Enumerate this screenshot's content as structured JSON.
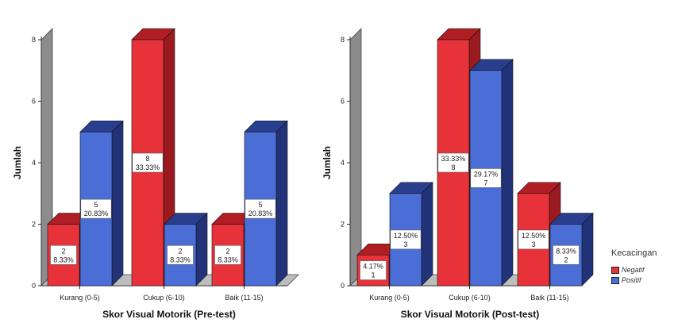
{
  "chart_data": [
    {
      "type": "bar",
      "xlabel": "Skor Visual Motorik (Pre-test)",
      "ylabel": "Jumlah",
      "ylim": [
        0,
        8
      ],
      "yticks": [
        "0",
        "2",
        "4",
        "6",
        "8"
      ],
      "categories": [
        "Kurang (0-5)",
        "Cukup (6-10)",
        "Baik (11-15)"
      ],
      "series": [
        {
          "name": "Negatif",
          "values": [
            2,
            8,
            2
          ],
          "labels": [
            [
              "2",
              "8.33%"
            ],
            [
              "8",
              "33.33%"
            ],
            [
              "2",
              "8.33%"
            ]
          ]
        },
        {
          "name": "Positif",
          "values": [
            5,
            2,
            5
          ],
          "labels": [
            [
              "5",
              "20.83%"
            ],
            [
              "2",
              "8.33%"
            ],
            [
              "5",
              "20.83%"
            ]
          ]
        }
      ]
    },
    {
      "type": "bar",
      "xlabel": "Skor Visual Motorik (Post-test)",
      "ylabel": "Jumlah",
      "ylim": [
        0,
        8
      ],
      "yticks": [
        "0",
        "2",
        "4",
        "6",
        "8"
      ],
      "categories": [
        "Kurang (0-5)",
        "Cukup (6-10)",
        "Baik (11-15)"
      ],
      "series": [
        {
          "name": "Negatif",
          "values": [
            1,
            8,
            3
          ],
          "labels": [
            [
              "4.17%",
              "1"
            ],
            [
              "33.33%",
              "8"
            ],
            [
              "12.50%",
              "3"
            ]
          ]
        },
        {
          "name": "Positif",
          "values": [
            3,
            7,
            2
          ],
          "labels": [
            [
              "12.50%",
              "3"
            ],
            [
              "29.17%",
              "7"
            ],
            [
              "8.33%",
              "2"
            ]
          ]
        }
      ]
    }
  ],
  "legend": {
    "title": "Kecacingan",
    "items": [
      {
        "label": "Negatif",
        "color": "#e8323a"
      },
      {
        "label": "Positif",
        "color": "#4a6ed6"
      }
    ]
  },
  "colors": {
    "negatif_front": "#e8323a",
    "negatif_top": "#b01e24",
    "negatif_side": "#9a1a20",
    "positif_front": "#4a6ed6",
    "positif_top": "#2a3e8e",
    "positif_side": "#223379",
    "wall": "#8c8c8c",
    "floor": "#bdbdbd"
  }
}
